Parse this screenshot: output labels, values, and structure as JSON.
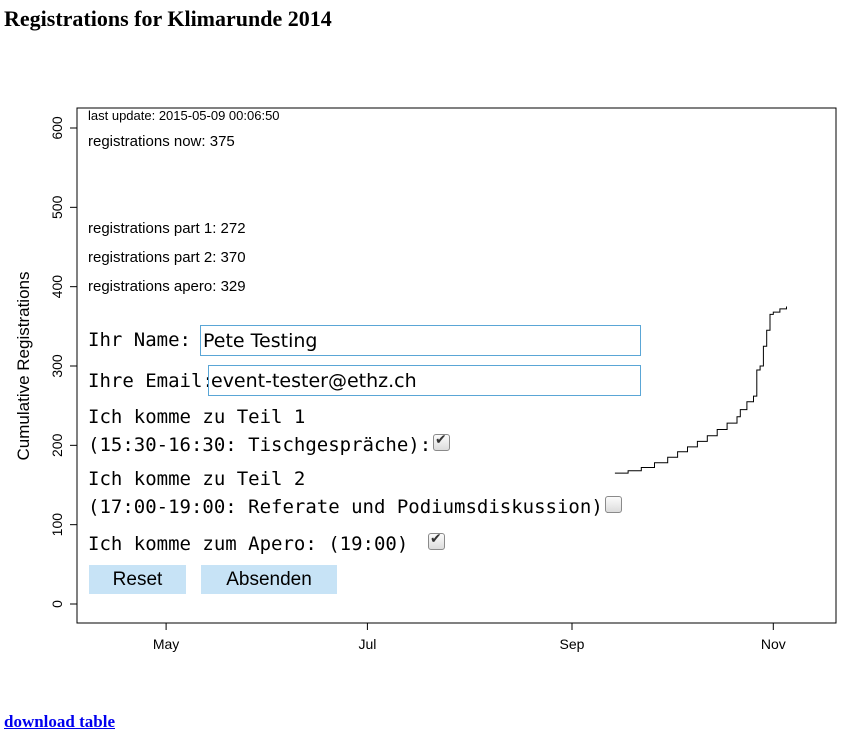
{
  "page": {
    "title": "Registrations for Klimarunde 2014",
    "download_link": "download table"
  },
  "stats": {
    "last_update": "last update: 2015-05-09 00:06:50",
    "now": "registrations now: 375",
    "part1": "registrations part 1: 272",
    "part2": "registrations part 2: 370",
    "apero": "registrations apero: 329"
  },
  "form": {
    "name_label": "Ihr Name:",
    "name_value": "Pete Testing",
    "email_label": "Ihre Email:",
    "email_value": "event-tester@ethz.ch",
    "part1_line1": "Ich komme zu Teil 1",
    "part1_line2": "(15:30-16:30: Tischgespräche):",
    "part1_checked": true,
    "part2_line1": "Ich komme zu Teil 2",
    "part2_line2": "(17:00-19:00: Referate und Podiumsdiskussion):",
    "part2_checked": false,
    "apero_label": "Ich komme zum Apero: (19:00)",
    "apero_checked": true,
    "reset_label": "Reset",
    "submit_label": "Absenden",
    "accent_color": "#c7e3f6"
  },
  "chart_data": {
    "type": "line",
    "title": "",
    "xlabel": "",
    "ylabel": "Cumulative Registrations",
    "ylim": [
      0,
      600
    ],
    "yticks": [
      0,
      100,
      200,
      300,
      400,
      500,
      600
    ],
    "xticks": [
      "May",
      "Jul",
      "Sep",
      "Nov"
    ],
    "xlim": [
      "2014-04-04",
      "2014-11-20"
    ],
    "series": [
      {
        "x": [
          "2014-09-14",
          "2014-09-18",
          "2014-09-22",
          "2014-09-26",
          "2014-09-30",
          "2014-10-03",
          "2014-10-06",
          "2014-10-09",
          "2014-10-12",
          "2014-10-15",
          "2014-10-18",
          "2014-10-21",
          "2014-10-22",
          "2014-10-24",
          "2014-10-26",
          "2014-10-27",
          "2014-10-28",
          "2014-10-29",
          "2014-10-30",
          "2014-10-31",
          "2014-11-01",
          "2014-11-03",
          "2014-11-05"
        ],
        "y": [
          165,
          168,
          172,
          178,
          185,
          192,
          198,
          205,
          212,
          220,
          228,
          236,
          245,
          255,
          262,
          295,
          300,
          325,
          345,
          365,
          368,
          372,
          375
        ]
      }
    ]
  }
}
